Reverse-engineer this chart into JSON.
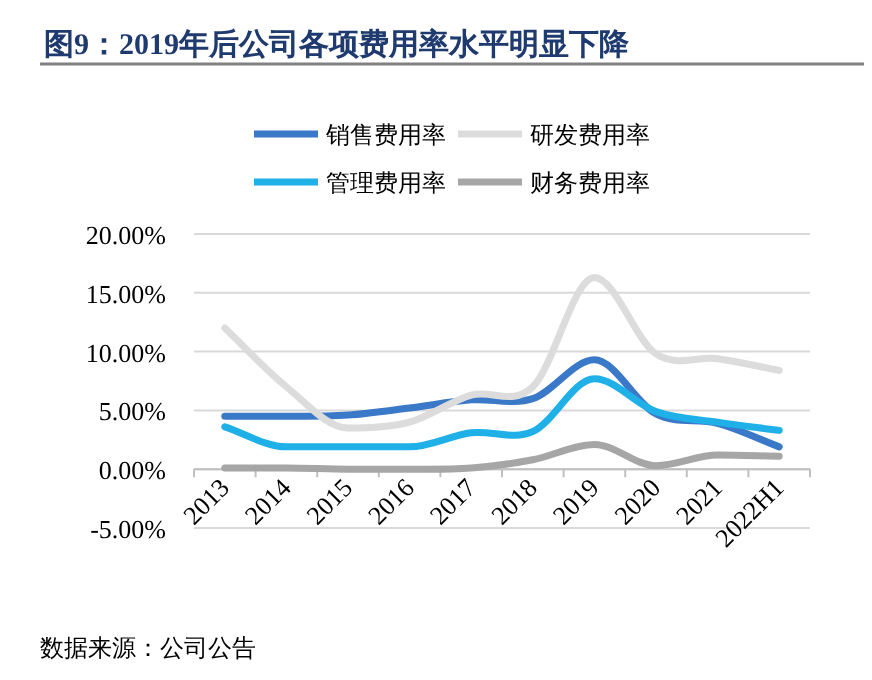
{
  "chart_data": {
    "type": "line",
    "title": "图9：2019年后公司各项费用率水平明显下降",
    "categories": [
      "2013",
      "2014",
      "2015",
      "2016",
      "2017",
      "2018",
      "2019",
      "2020",
      "2021",
      "2022H1"
    ],
    "series": [
      {
        "name": "销售费用率",
        "color": "#3a78c8",
        "values": [
          4.5,
          4.5,
          4.6,
          5.2,
          5.9,
          6.0,
          9.3,
          4.7,
          3.9,
          1.9
        ]
      },
      {
        "name": "研发费用率",
        "color": "#dcdcdc",
        "values": [
          12.0,
          7.0,
          3.5,
          4.0,
          6.3,
          7.0,
          16.3,
          9.8,
          9.4,
          8.4
        ]
      },
      {
        "name": "管理费用率",
        "color": "#1fb0e8",
        "values": [
          3.6,
          1.9,
          1.9,
          1.9,
          3.1,
          3.2,
          7.7,
          4.9,
          4.0,
          3.3
        ]
      },
      {
        "name": "财务费用率",
        "color": "#a6a6a6",
        "values": [
          0.1,
          0.1,
          0.0,
          0.0,
          0.1,
          0.8,
          2.1,
          0.3,
          1.2,
          1.1
        ]
      }
    ],
    "ylim": [
      -5,
      20
    ],
    "yticks": [
      {
        "value": -5,
        "label": "-5.00%"
      },
      {
        "value": 0,
        "label": "0.00%"
      },
      {
        "value": 5,
        "label": "5.00%"
      },
      {
        "value": 10,
        "label": "10.00%"
      },
      {
        "value": 15,
        "label": "15.00%"
      },
      {
        "value": 20,
        "label": "20.00%"
      }
    ],
    "grid": "y",
    "legend": "top",
    "marker": "none",
    "line_style": "solid",
    "annotations": [
      "数据来源：公司公告"
    ]
  }
}
